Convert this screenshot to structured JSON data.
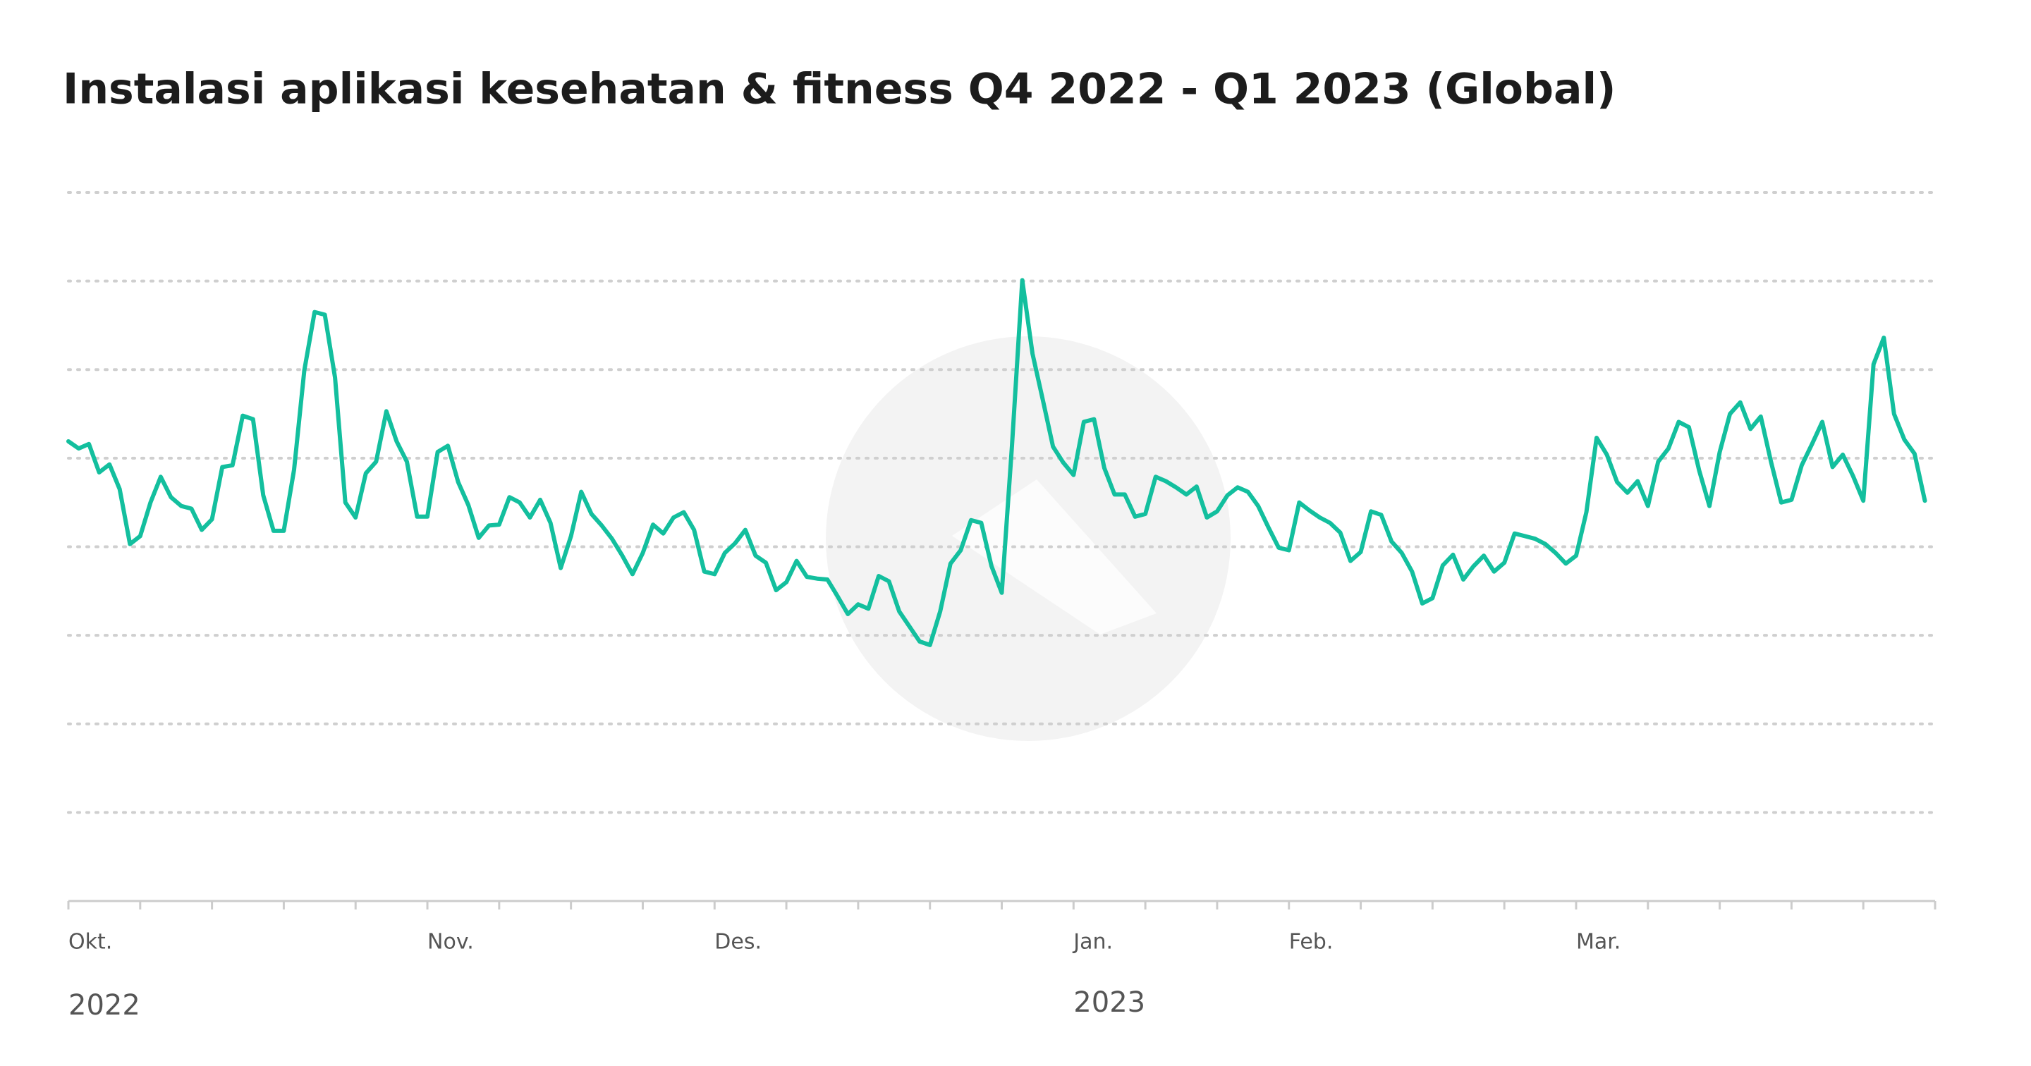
{
  "chart_data": {
    "type": "line",
    "title": "Instalasi aplikasi kesehatan & fitness Q4 2022 - Q1 2023 (Global)",
    "xlim": [
      0,
      182
    ],
    "xticks": [
      {
        "value": 0,
        "label": "Okt."
      },
      {
        "value": 35,
        "label": "Nov."
      },
      {
        "value": 63,
        "label": "Des."
      },
      {
        "value": 98,
        "label": "Jan."
      },
      {
        "value": 119,
        "label": "Feb."
      },
      {
        "value": 147,
        "label": "Mar."
      }
    ],
    "year_ticks": [
      {
        "value": 0,
        "label": "2022"
      },
      {
        "value": 98,
        "label": "2023"
      }
    ],
    "minor_xticks": [
      0,
      7,
      14,
      21,
      28,
      35,
      42,
      49,
      56,
      63,
      70,
      77,
      84,
      91,
      98,
      105,
      112,
      119,
      126,
      133,
      140,
      147,
      154,
      161,
      168,
      175,
      182
    ],
    "ylim": [
      0,
      8
    ],
    "yticks": [
      0,
      1,
      2,
      3,
      4,
      5,
      6,
      7,
      8
    ],
    "grid": true,
    "series": [
      {
        "color": "#13bf9e",
        "values": [
          5.19,
          5.11,
          5.16,
          4.84,
          4.93,
          4.65,
          4.03,
          4.12,
          4.5,
          4.79,
          4.56,
          4.46,
          4.43,
          4.19,
          4.31,
          4.9,
          4.92,
          5.48,
          5.44,
          4.58,
          4.18,
          4.18,
          4.87,
          5.99,
          6.65,
          6.62,
          5.91,
          4.5,
          4.33,
          4.83,
          4.96,
          5.53,
          5.19,
          4.96,
          4.34,
          4.34,
          5.07,
          5.14,
          4.73,
          4.47,
          4.1,
          4.24,
          4.25,
          4.56,
          4.5,
          4.33,
          4.53,
          4.27,
          3.76,
          4.12,
          4.62,
          4.37,
          4.24,
          4.09,
          3.9,
          3.69,
          3.93,
          4.25,
          4.15,
          4.33,
          4.39,
          4.19,
          3.72,
          3.69,
          3.93,
          4.04,
          4.19,
          3.9,
          3.82,
          3.51,
          3.6,
          3.84,
          3.66,
          3.64,
          3.63,
          3.44,
          3.24,
          3.35,
          3.3,
          3.67,
          3.61,
          3.27,
          3.1,
          2.93,
          2.89,
          3.27,
          3.81,
          3.96,
          4.3,
          4.27,
          3.78,
          3.48,
          5.14,
          7.01,
          6.18,
          5.66,
          5.13,
          4.95,
          4.81,
          5.41,
          5.44,
          4.89,
          4.59,
          4.59,
          4.34,
          4.37,
          4.79,
          4.74,
          4.67,
          4.59,
          4.68,
          4.33,
          4.4,
          4.58,
          4.67,
          4.62,
          4.46,
          4.22,
          3.99,
          3.96,
          4.5,
          4.41,
          4.33,
          4.27,
          4.16,
          3.84,
          3.94,
          4.4,
          4.36,
          4.06,
          3.93,
          3.72,
          3.36,
          3.42,
          3.79,
          3.91,
          3.63,
          3.78,
          3.9,
          3.72,
          3.82,
          4.15,
          4.12,
          4.09,
          4.03,
          3.93,
          3.81,
          3.9,
          4.39,
          5.23,
          5.04,
          4.73,
          4.61,
          4.74,
          4.46,
          4.96,
          5.11,
          5.41,
          5.35,
          4.86,
          4.46,
          5.07,
          5.5,
          5.63,
          5.33,
          5.47,
          4.96,
          4.5,
          4.53,
          4.92,
          5.16,
          5.41,
          4.9,
          5.04,
          4.8,
          4.52,
          6.06,
          6.36,
          5.5,
          5.21,
          5.05,
          4.52
        ]
      }
    ]
  }
}
